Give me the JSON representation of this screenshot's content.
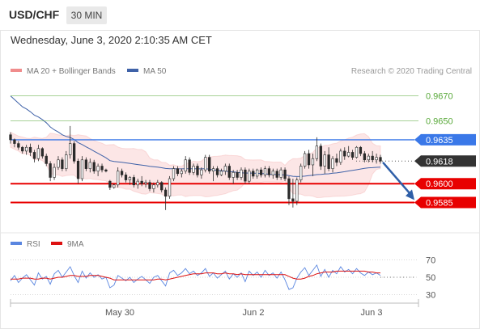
{
  "header": {
    "symbol": "USD/CHF",
    "timeframe": "30 MIN"
  },
  "datetime": "Wednesday, June 3, 2020 2:10:35 AM CET",
  "colors": {
    "bollinger": "#f08c8c",
    "ma50": "#3f62a8",
    "target": "#59a93a",
    "resistance": "#3a78e8",
    "support": "#e80000",
    "price_label": "#333333",
    "arrow": "#2f5fa8",
    "candle": "#2a2a2a",
    "rsi": "#5a86e0",
    "rsi_ma": "#dd1111"
  },
  "chart_data": [
    {
      "type": "candlestick",
      "legend": [
        {
          "label": "MA 20 + Bollinger Bands",
          "color": "#f08c8c"
        },
        {
          "label": "MA 50",
          "color": "#3f62a8"
        }
      ],
      "copyright": "Research © 2020 Trading Central",
      "ylim": [
        0.9566,
        0.9682
      ],
      "xlabels": [
        "May 30",
        "Jun 2",
        "Jun 3"
      ],
      "levels": [
        {
          "value": 0.967,
          "label": "0.9670",
          "kind": "target"
        },
        {
          "value": 0.965,
          "label": "0.9650",
          "kind": "target"
        },
        {
          "value": 0.9635,
          "label": "0.9635",
          "kind": "resistance"
        },
        {
          "value": 0.9618,
          "label": "0.9618",
          "kind": "last"
        },
        {
          "value": 0.96,
          "label": "0.9600",
          "kind": "support"
        },
        {
          "value": 0.9585,
          "label": "0.9585",
          "kind": "support"
        }
      ],
      "forecast_arrow": {
        "from": 0.9617,
        "to": 0.9587
      },
      "candles": [
        [
          0.9639,
          0.9641,
          0.9632,
          0.9635
        ],
        [
          0.9635,
          0.9636,
          0.9629,
          0.9632
        ],
        [
          0.9632,
          0.9634,
          0.9627,
          0.9629
        ],
        [
          0.9629,
          0.963,
          0.9624,
          0.9626
        ],
        [
          0.9626,
          0.9631,
          0.9623,
          0.9629
        ],
        [
          0.9629,
          0.9632,
          0.9622,
          0.9625
        ],
        [
          0.9625,
          0.9627,
          0.9617,
          0.962
        ],
        [
          0.962,
          0.9631,
          0.9618,
          0.9628
        ],
        [
          0.9628,
          0.9629,
          0.962,
          0.9622
        ],
        [
          0.9622,
          0.9624,
          0.9614,
          0.9616
        ],
        [
          0.9616,
          0.9618,
          0.9602,
          0.9605
        ],
        [
          0.9605,
          0.9616,
          0.9603,
          0.9613
        ],
        [
          0.9613,
          0.9622,
          0.9611,
          0.9619
        ],
        [
          0.9619,
          0.9621,
          0.961,
          0.9612
        ],
        [
          0.9612,
          0.9626,
          0.961,
          0.9623
        ],
        [
          0.9623,
          0.9646,
          0.962,
          0.9632
        ],
        [
          0.9632,
          0.9634,
          0.9616,
          0.9618
        ],
        [
          0.9618,
          0.962,
          0.96,
          0.9604
        ],
        [
          0.9604,
          0.9622,
          0.9602,
          0.9619
        ],
        [
          0.9619,
          0.9621,
          0.961,
          0.9612
        ],
        [
          0.9612,
          0.962,
          0.9609,
          0.9617
        ],
        [
          0.9617,
          0.9619,
          0.9608,
          0.961
        ],
        [
          0.961,
          0.9616,
          0.9606,
          0.9614
        ],
        [
          0.9614,
          0.9616,
          0.9609,
          0.9611
        ],
        [
          0.9611,
          0.9612,
          0.9609,
          0.961
        ],
        [
          0.9602,
          0.9603,
          0.9595,
          0.9597
        ],
        [
          0.9597,
          0.96,
          0.9596,
          0.9599
        ],
        [
          0.9599,
          0.9613,
          0.9597,
          0.961
        ],
        [
          0.961,
          0.9612,
          0.9605,
          0.9607
        ],
        [
          0.9607,
          0.9609,
          0.9601,
          0.9603
        ],
        [
          0.9603,
          0.9606,
          0.9599,
          0.9605
        ],
        [
          0.9605,
          0.9607,
          0.9597,
          0.9599
        ],
        [
          0.9599,
          0.9604,
          0.9596,
          0.9602
        ],
        [
          0.9602,
          0.9606,
          0.9598,
          0.96
        ],
        [
          0.96,
          0.9603,
          0.9597,
          0.9601
        ],
        [
          0.9601,
          0.9603,
          0.9594,
          0.9596
        ],
        [
          0.9596,
          0.9601,
          0.9593,
          0.9599
        ],
        [
          0.9599,
          0.9603,
          0.9597,
          0.9601
        ],
        [
          0.9601,
          0.9602,
          0.9593,
          0.9595
        ],
        [
          0.9595,
          0.9597,
          0.9579,
          0.959
        ],
        [
          0.959,
          0.9606,
          0.9588,
          0.9604
        ],
        [
          0.9604,
          0.9614,
          0.9602,
          0.9612
        ],
        [
          0.9612,
          0.9614,
          0.9606,
          0.9608
        ],
        [
          0.9608,
          0.9612,
          0.9605,
          0.961
        ],
        [
          0.961,
          0.9622,
          0.9608,
          0.9619
        ],
        [
          0.9619,
          0.9621,
          0.9607,
          0.9609
        ],
        [
          0.9609,
          0.9616,
          0.9607,
          0.9614
        ],
        [
          0.9614,
          0.9616,
          0.9605,
          0.9607
        ],
        [
          0.9607,
          0.9613,
          0.9604,
          0.9611
        ],
        [
          0.9611,
          0.9623,
          0.9609,
          0.9621
        ],
        [
          0.9621,
          0.9623,
          0.9608,
          0.961
        ],
        [
          0.961,
          0.9614,
          0.9602,
          0.9612
        ],
        [
          0.9612,
          0.9614,
          0.9605,
          0.9607
        ],
        [
          0.9607,
          0.9612,
          0.9606,
          0.961
        ],
        [
          0.961,
          0.9616,
          0.9607,
          0.9614
        ],
        [
          0.9614,
          0.9616,
          0.9603,
          0.9605
        ],
        [
          0.9605,
          0.9611,
          0.96,
          0.9609
        ],
        [
          0.9609,
          0.9611,
          0.9603,
          0.9605
        ],
        [
          0.9605,
          0.9613,
          0.9603,
          0.9611
        ],
        [
          0.9611,
          0.9613,
          0.96,
          0.9602
        ],
        [
          0.9602,
          0.9612,
          0.96,
          0.961
        ],
        [
          0.961,
          0.9612,
          0.9604,
          0.9606
        ],
        [
          0.9606,
          0.9612,
          0.9604,
          0.9611
        ],
        [
          0.9611,
          0.9613,
          0.9605,
          0.9607
        ],
        [
          0.9607,
          0.9614,
          0.9605,
          0.9612
        ],
        [
          0.9612,
          0.9614,
          0.9605,
          0.9607
        ],
        [
          0.9607,
          0.9612,
          0.9604,
          0.961
        ],
        [
          0.961,
          0.9612,
          0.9603,
          0.9605
        ],
        [
          0.9605,
          0.9613,
          0.9603,
          0.9611
        ],
        [
          0.9611,
          0.9613,
          0.9602,
          0.9604
        ],
        [
          0.9604,
          0.9606,
          0.9583,
          0.9588
        ],
        [
          0.9588,
          0.9604,
          0.9581,
          0.9586
        ],
        [
          0.9586,
          0.9605,
          0.9583,
          0.9603
        ],
        [
          0.9603,
          0.9616,
          0.9601,
          0.9614
        ],
        [
          0.9614,
          0.9626,
          0.9612,
          0.9624
        ],
        [
          0.9624,
          0.9627,
          0.9612,
          0.9615
        ],
        [
          0.9615,
          0.9624,
          0.9606,
          0.962
        ],
        [
          0.962,
          0.9637,
          0.9618,
          0.963
        ],
        [
          0.963,
          0.9632,
          0.9611,
          0.9614
        ],
        [
          0.9614,
          0.9626,
          0.9608,
          0.9623
        ],
        [
          0.9623,
          0.9629,
          0.961,
          0.9612
        ],
        [
          0.9612,
          0.9622,
          0.9609,
          0.962
        ],
        [
          0.962,
          0.9624,
          0.9614,
          0.9617
        ],
        [
          0.9617,
          0.9628,
          0.9615,
          0.9626
        ],
        [
          0.9626,
          0.9629,
          0.9619,
          0.9622
        ],
        [
          0.9622,
          0.963,
          0.9621,
          0.9625
        ],
        [
          0.9625,
          0.9627,
          0.9619,
          0.9621
        ],
        [
          0.9621,
          0.963,
          0.962,
          0.9629
        ],
        [
          0.9629,
          0.963,
          0.9622,
          0.9624
        ],
        [
          0.9624,
          0.9626,
          0.9617,
          0.9619
        ],
        [
          0.9619,
          0.9624,
          0.9617,
          0.9622
        ],
        [
          0.9622,
          0.9626,
          0.9617,
          0.9619
        ],
        [
          0.9619,
          0.9624,
          0.9616,
          0.9621
        ],
        [
          0.9621,
          0.9623,
          0.9616,
          0.9618
        ]
      ]
    },
    {
      "type": "line",
      "legend": [
        {
          "label": "RSI",
          "color": "#5a86e0"
        },
        {
          "label": "9MA",
          "color": "#dd1111"
        }
      ],
      "ylim": [
        25,
        75
      ],
      "yticks": [
        70,
        50,
        30
      ],
      "series": [
        {
          "name": "RSI",
          "values": [
            46,
            52,
            44,
            49,
            53,
            47,
            41,
            55,
            48,
            51,
            42,
            54,
            58,
            50,
            56,
            62,
            52,
            44,
            57,
            49,
            55,
            50,
            53,
            48,
            50,
            38,
            41,
            52,
            49,
            46,
            50,
            44,
            48,
            51,
            47,
            43,
            50,
            52,
            46,
            40,
            55,
            58,
            52,
            55,
            60,
            54,
            57,
            52,
            55,
            60,
            51,
            55,
            49,
            53,
            57,
            48,
            54,
            50,
            55,
            45,
            57,
            52,
            56,
            50,
            58,
            52,
            55,
            49,
            56,
            47,
            36,
            38,
            49,
            56,
            61,
            52,
            58,
            64,
            51,
            59,
            50,
            58,
            54,
            62,
            56,
            59,
            54,
            60,
            55,
            52,
            56,
            53,
            55,
            52
          ]
        },
        {
          "name": "9MA",
          "values": [
            48,
            48,
            48,
            49,
            49,
            49,
            48,
            48,
            49,
            49,
            48,
            49,
            50,
            50,
            51,
            52,
            52,
            51,
            51,
            51,
            52,
            52,
            52,
            51,
            50,
            49,
            47,
            47,
            47,
            47,
            47,
            47,
            47,
            47,
            47,
            47,
            47,
            48,
            48,
            47,
            48,
            49,
            50,
            51,
            52,
            53,
            54,
            54,
            54,
            55,
            55,
            55,
            54,
            54,
            55,
            54,
            54,
            53,
            54,
            53,
            53,
            53,
            53,
            53,
            53,
            53,
            53,
            53,
            53,
            53,
            51,
            49,
            48,
            48,
            49,
            51,
            52,
            54,
            55,
            56,
            56,
            56,
            57,
            57,
            57,
            57,
            57,
            57,
            57,
            57,
            56,
            56,
            55,
            55
          ]
        }
      ]
    }
  ]
}
